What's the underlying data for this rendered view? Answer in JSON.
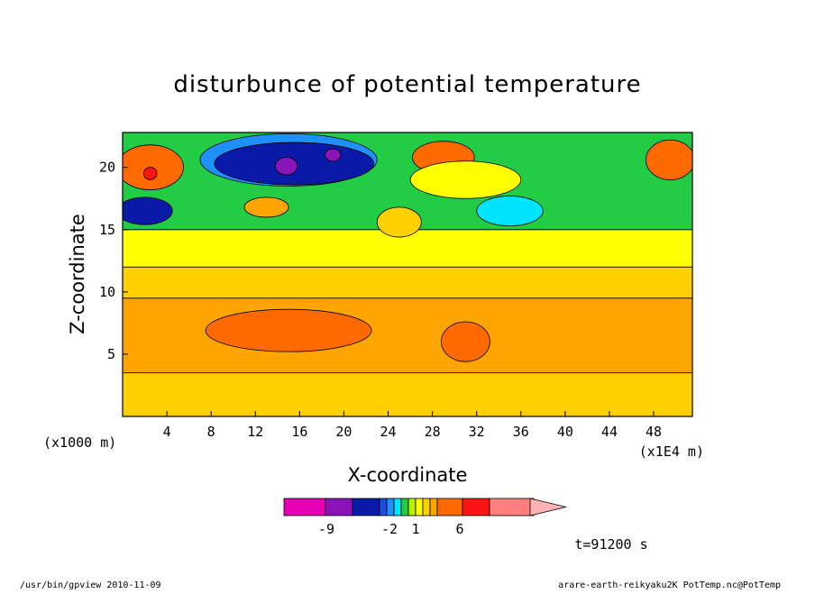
{
  "chart_data": {
    "type": "heatmap",
    "title": "disturbunce of potential temperature",
    "xlabel": "X-coordinate",
    "ylabel": "Z-coordinate",
    "x_unit": "(x1000 m)",
    "x_scale_note": "(x1E4 m)",
    "xlim": [
      0,
      51.5
    ],
    "ylim": [
      0,
      22.8
    ],
    "x_ticks": [
      "4",
      "8",
      "12",
      "16",
      "20",
      "24",
      "28",
      "32",
      "36",
      "40",
      "44",
      "48"
    ],
    "x_tick_values": [
      4,
      8,
      12,
      16,
      20,
      24,
      28,
      32,
      36,
      40,
      44,
      48
    ],
    "y_ticks": [
      "5",
      "10",
      "15",
      "20"
    ],
    "y_tick_values": [
      5,
      10,
      15,
      20
    ],
    "contour_levels": [
      -9,
      -2,
      1,
      6
    ],
    "colorbar_labels": [
      "-9",
      "-2",
      "1",
      "6"
    ],
    "colorbar_colors": [
      "#e600b3",
      "#8a14b8",
      "#0a1aa8",
      "#1d4ddc",
      "#1e90ff",
      "#00e5ff",
      "#22cc44",
      "#b8f000",
      "#ffff00",
      "#ffd000",
      "#ffa500",
      "#ff6a00",
      "#ff1414",
      "#ff7f7f",
      "#ffb3b3"
    ],
    "bands": [
      {
        "z_from": 0,
        "z_to": 3.5,
        "color": "#ffd000"
      },
      {
        "z_from": 3.5,
        "z_to": 9.5,
        "color": "#ffa500"
      },
      {
        "z_from": 9.5,
        "z_to": 12,
        "color": "#ffd000"
      },
      {
        "z_from": 12,
        "z_to": 15,
        "color": "#ffff00"
      },
      {
        "z_from": 15,
        "z_to": 22.8,
        "color": "#22cc44"
      }
    ],
    "blobs": [
      {
        "cx": 15,
        "cy": 6.9,
        "rx": 7.5,
        "ry": 1.7,
        "color": "#ff6a00"
      },
      {
        "cx": 31,
        "cy": 6,
        "rx": 2.2,
        "ry": 1.6,
        "color": "#ff6a00"
      },
      {
        "cx": 15,
        "cy": 20.6,
        "rx": 8,
        "ry": 2.1,
        "color": "#1e90ff"
      },
      {
        "cx": 15.5,
        "cy": 20.3,
        "rx": 7.2,
        "ry": 1.7,
        "color": "#0a1aa8"
      },
      {
        "cx": 14.8,
        "cy": 20.1,
        "rx": 1,
        "ry": 0.7,
        "color": "#8a14b8"
      },
      {
        "cx": 19,
        "cy": 21,
        "rx": 0.7,
        "ry": 0.5,
        "color": "#8a14b8"
      },
      {
        "cx": 2,
        "cy": 16.5,
        "rx": 2.5,
        "ry": 1.1,
        "color": "#0a1aa8"
      },
      {
        "cx": 2.5,
        "cy": 20,
        "rx": 3,
        "ry": 1.8,
        "color": "#ff6a00"
      },
      {
        "cx": 2.5,
        "cy": 19.5,
        "rx": 0.6,
        "ry": 0.5,
        "color": "#ff1414"
      },
      {
        "cx": 29,
        "cy": 20.8,
        "rx": 2.8,
        "ry": 1.3,
        "color": "#ff6a00"
      },
      {
        "cx": 49.5,
        "cy": 20.6,
        "rx": 2.2,
        "ry": 1.6,
        "color": "#ff6a00"
      },
      {
        "cx": 13,
        "cy": 16.8,
        "rx": 2,
        "ry": 0.8,
        "color": "#ffa500"
      },
      {
        "cx": 35,
        "cy": 16.5,
        "rx": 3,
        "ry": 1.2,
        "color": "#00e5ff"
      },
      {
        "cx": 25,
        "cy": 15.6,
        "rx": 2,
        "ry": 1.2,
        "color": "#ffd000"
      },
      {
        "cx": 31,
        "cy": 19,
        "rx": 5,
        "ry": 1.5,
        "color": "#ffff00"
      }
    ],
    "time_label": "t=91200 s",
    "footer_left": "/usr/bin/gpview  2010-11-09",
    "footer_right": "arare-earth-reikyaku2K_PotTemp.nc@PotTemp"
  }
}
